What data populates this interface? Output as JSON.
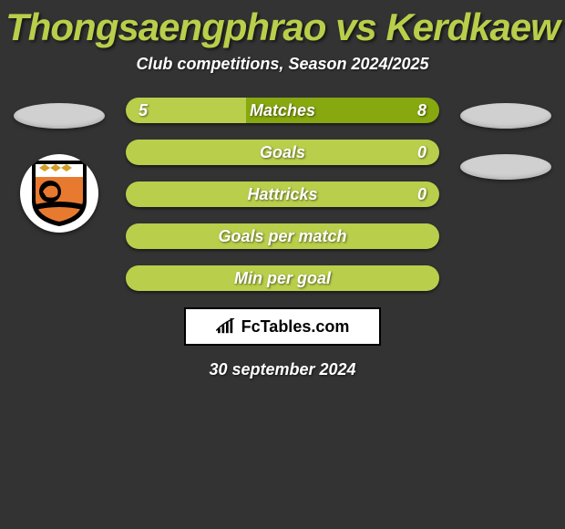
{
  "title": "Thongsaengphrao vs Kerdkaew",
  "subtitle": "Club competitions, Season 2024/2025",
  "date": "30 september 2024",
  "brand": "FcTables.com",
  "colors": {
    "background": "#333333",
    "bar_left": "#b9ce4a",
    "bar_right": "#88a80f",
    "bar_full": "#b9ce4a",
    "title_color": "#b9ce4a",
    "text_color": "#ffffff",
    "ellipse": "#d0d0d0"
  },
  "bars": [
    {
      "label": "Matches",
      "left_value": "5",
      "right_value": "8",
      "left_pct": 38.5,
      "right_pct": 61.5,
      "show_values": true
    },
    {
      "label": "Goals",
      "left_value": "",
      "right_value": "0",
      "left_pct": 100,
      "right_pct": 0,
      "show_values": true
    },
    {
      "label": "Hattricks",
      "left_value": "",
      "right_value": "0",
      "left_pct": 100,
      "right_pct": 0,
      "show_values": true
    },
    {
      "label": "Goals per match",
      "left_value": "",
      "right_value": "",
      "left_pct": 100,
      "right_pct": 0,
      "show_values": false
    },
    {
      "label": "Min per goal",
      "left_value": "",
      "right_value": "",
      "left_pct": 100,
      "right_pct": 0,
      "show_values": false
    }
  ],
  "left_player": {
    "show_club_logo": true
  },
  "right_player": {
    "show_club_logo": false
  }
}
